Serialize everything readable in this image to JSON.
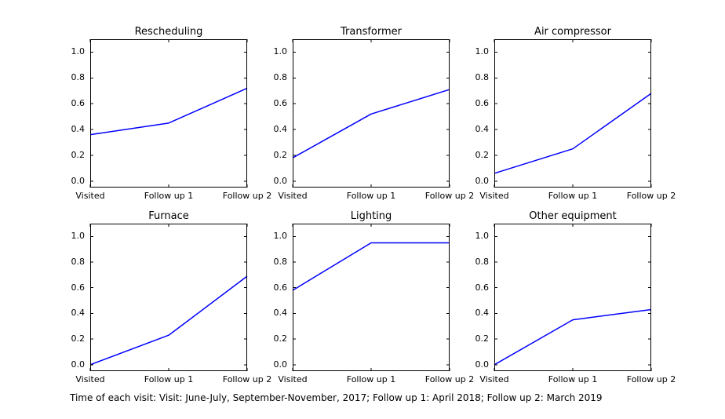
{
  "figure": {
    "background": "#ffffff",
    "frame_color": "#000000",
    "text_color": "#000000",
    "line_color": "#0000ff",
    "caption": "Time of each visit: Visit: June-July, September-November, 2017; Follow up 1: April 2018; Follow up 2: March 2019"
  },
  "chart_data": [
    {
      "type": "line",
      "title": "Rescheduling",
      "categories": [
        "Visited",
        "Follow up 1",
        "Follow up 2"
      ],
      "values": [
        0.36,
        0.45,
        0.72
      ],
      "yticks": [
        "0.0",
        "0.2",
        "0.4",
        "0.6",
        "0.8",
        "1.0"
      ],
      "ylim": [
        -0.05,
        1.1
      ],
      "xlim": [
        0,
        2
      ],
      "xlabel": "",
      "ylabel": "",
      "grid": false,
      "line_color": "#0000ff"
    },
    {
      "type": "line",
      "title": "Transformer",
      "categories": [
        "Visited",
        "Follow up 1",
        "Follow up 2"
      ],
      "values": [
        0.18,
        0.52,
        0.71
      ],
      "yticks": [
        "0.0",
        "0.2",
        "0.4",
        "0.6",
        "0.8",
        "1.0"
      ],
      "ylim": [
        -0.05,
        1.1
      ],
      "xlim": [
        0,
        2
      ],
      "xlabel": "",
      "ylabel": "",
      "grid": false,
      "line_color": "#0000ff"
    },
    {
      "type": "line",
      "title": "Air compressor",
      "categories": [
        "Visited",
        "Follow up 1",
        "Follow up 2"
      ],
      "values": [
        0.06,
        0.25,
        0.68
      ],
      "yticks": [
        "0.0",
        "0.2",
        "0.4",
        "0.6",
        "0.8",
        "1.0"
      ],
      "ylim": [
        -0.05,
        1.1
      ],
      "xlim": [
        0,
        2
      ],
      "xlabel": "",
      "ylabel": "",
      "grid": false,
      "line_color": "#0000ff"
    },
    {
      "type": "line",
      "title": "Furnace",
      "categories": [
        "Visited",
        "Follow up 1",
        "Follow up 2"
      ],
      "values": [
        0.0,
        0.23,
        0.69
      ],
      "yticks": [
        "0.0",
        "0.2",
        "0.4",
        "0.6",
        "0.8",
        "1.0"
      ],
      "ylim": [
        -0.05,
        1.1
      ],
      "xlim": [
        0,
        2
      ],
      "xlabel": "",
      "ylabel": "",
      "grid": false,
      "line_color": "#0000ff"
    },
    {
      "type": "line",
      "title": "Lighting",
      "categories": [
        "Visited",
        "Follow up 1",
        "Follow up 2"
      ],
      "values": [
        0.58,
        0.95,
        0.95
      ],
      "yticks": [
        "0.0",
        "0.2",
        "0.4",
        "0.6",
        "0.8",
        "1.0"
      ],
      "ylim": [
        -0.05,
        1.1
      ],
      "xlim": [
        0,
        2
      ],
      "xlabel": "",
      "ylabel": "",
      "grid": false,
      "line_color": "#0000ff"
    },
    {
      "type": "line",
      "title": "Other equipment",
      "categories": [
        "Visited",
        "Follow up 1",
        "Follow up 2"
      ],
      "values": [
        0.0,
        0.35,
        0.43
      ],
      "yticks": [
        "0.0",
        "0.2",
        "0.4",
        "0.6",
        "0.8",
        "1.0"
      ],
      "ylim": [
        -0.05,
        1.1
      ],
      "xlim": [
        0,
        2
      ],
      "xlabel": "",
      "ylabel": "",
      "grid": false,
      "line_color": "#0000ff"
    }
  ]
}
